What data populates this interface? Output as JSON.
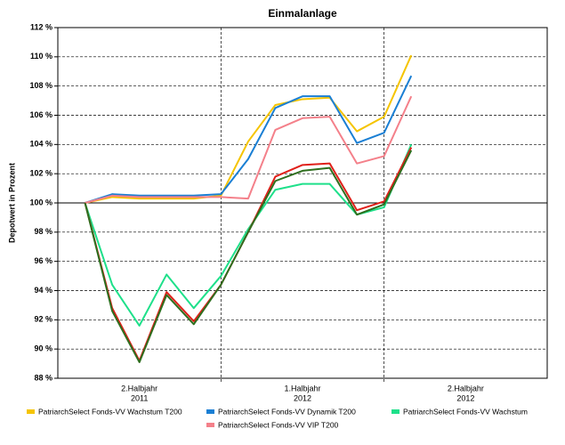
{
  "chart_data": {
    "type": "line",
    "title": "Einmalanlage",
    "y_label": "Depotwert in Prozent",
    "periods": [
      [
        "2.Halbjahr",
        "2011"
      ],
      [
        "1.Halbjahr",
        "2012"
      ],
      [
        "2.Halbjahr",
        "2012"
      ]
    ],
    "ylim": [
      88,
      112
    ],
    "yticks": [
      {
        "value": 88,
        "label": "88 %"
      },
      {
        "value": 90,
        "label": "90 %"
      },
      {
        "value": 92,
        "label": "92 %"
      },
      {
        "value": 94,
        "label": "94 %"
      },
      {
        "value": 96,
        "label": "96 %"
      },
      {
        "value": 98,
        "label": "98 %"
      },
      {
        "value": 100,
        "label": "100 %"
      },
      {
        "value": 102,
        "label": "102 %"
      },
      {
        "value": 104,
        "label": "104 %"
      },
      {
        "value": 106,
        "label": "106 %"
      },
      {
        "value": 108,
        "label": "108 %"
      },
      {
        "value": 110,
        "label": "110 %"
      },
      {
        "value": 112,
        "label": "112 %"
      }
    ],
    "grid": true,
    "series": [
      {
        "name": "PatriarchSelect Fonds-VV Wachstum T200",
        "color": "#f5c400",
        "values": [
          100,
          100.4,
          100.3,
          100.3,
          100.3,
          100.5,
          104.2,
          106.7,
          107.1,
          107.2,
          104.9,
          105.9,
          110.1
        ]
      },
      {
        "name": "PatriarchSelect Fonds-VV Dynamik T200",
        "color": "#1a7fd4",
        "values": [
          100,
          100.6,
          100.5,
          100.5,
          100.5,
          100.6,
          103.0,
          106.5,
          107.3,
          107.3,
          104.1,
          104.8,
          108.7
        ]
      },
      {
        "name": "PatriarchSelect Fonds-VV Wachstum",
        "color": "#1ee08a",
        "values": [
          100,
          94.4,
          91.6,
          95.1,
          92.8,
          95.0,
          98.2,
          100.9,
          101.3,
          101.3,
          99.2,
          99.7,
          104.0
        ]
      },
      {
        "name": "PatriarchSelect Fonds-VV VIP T200",
        "color": "#f4808a",
        "values": [
          100,
          100.5,
          100.4,
          100.4,
          100.4,
          100.4,
          100.3,
          105.0,
          105.8,
          105.9,
          102.7,
          103.2,
          107.3
        ]
      },
      {
        "color": "#e0201a",
        "values": [
          100,
          92.8,
          89.2,
          93.9,
          91.9,
          94.4,
          98.0,
          101.8,
          102.6,
          102.7,
          99.5,
          100.1,
          103.8
        ]
      },
      {
        "color": "#2e6e1e",
        "values": [
          100,
          92.6,
          89.1,
          93.7,
          91.7,
          94.4,
          98.0,
          101.5,
          102.2,
          102.4,
          99.2,
          99.9,
          103.6
        ]
      }
    ]
  }
}
